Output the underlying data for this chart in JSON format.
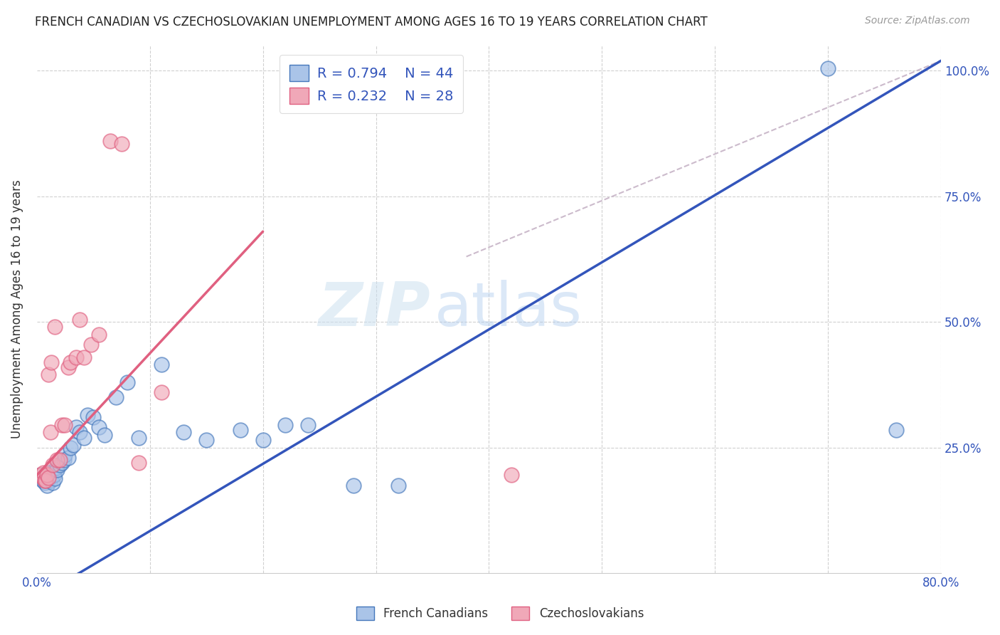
{
  "title": "FRENCH CANADIAN VS CZECHOSLOVAKIAN UNEMPLOYMENT AMONG AGES 16 TO 19 YEARS CORRELATION CHART",
  "source": "Source: ZipAtlas.com",
  "ylabel": "Unemployment Among Ages 16 to 19 years",
  "xmin": 0.0,
  "xmax": 0.8,
  "ymin": 0.0,
  "ymax": 1.05,
  "x_ticks": [
    0.0,
    0.1,
    0.2,
    0.3,
    0.4,
    0.5,
    0.6,
    0.7,
    0.8
  ],
  "y_ticks": [
    0.0,
    0.25,
    0.5,
    0.75,
    1.0
  ],
  "grid_color": "#d0d0d0",
  "background_color": "#ffffff",
  "blue_fill": "#aac4e8",
  "blue_edge": "#4477bb",
  "pink_fill": "#f0a8b8",
  "pink_edge": "#e06080",
  "blue_line_color": "#3355bb",
  "pink_line_color": "#e06080",
  "dash_line_color": "#e0a0b0",
  "legend_blue_R": "R = 0.794",
  "legend_blue_N": "N = 44",
  "legend_pink_R": "R = 0.232",
  "legend_pink_N": "N = 28",
  "watermark_zip": "ZIP",
  "watermark_atlas": "atlas",
  "blue_scatter_x": [
    0.003,
    0.005,
    0.005,
    0.007,
    0.008,
    0.009,
    0.01,
    0.01,
    0.011,
    0.012,
    0.013,
    0.014,
    0.015,
    0.016,
    0.017,
    0.018,
    0.02,
    0.022,
    0.024,
    0.025,
    0.028,
    0.03,
    0.032,
    0.035,
    0.038,
    0.042,
    0.045,
    0.05,
    0.055,
    0.06,
    0.07,
    0.08,
    0.09,
    0.11,
    0.13,
    0.15,
    0.18,
    0.2,
    0.22,
    0.24,
    0.28,
    0.32,
    0.7,
    0.76
  ],
  "blue_scatter_y": [
    0.195,
    0.19,
    0.185,
    0.18,
    0.185,
    0.175,
    0.195,
    0.2,
    0.188,
    0.185,
    0.192,
    0.18,
    0.195,
    0.188,
    0.21,
    0.205,
    0.215,
    0.22,
    0.225,
    0.235,
    0.23,
    0.25,
    0.255,
    0.29,
    0.28,
    0.27,
    0.315,
    0.31,
    0.29,
    0.275,
    0.35,
    0.38,
    0.27,
    0.415,
    0.28,
    0.265,
    0.285,
    0.265,
    0.295,
    0.295,
    0.175,
    0.175,
    1.005,
    0.285
  ],
  "pink_scatter_x": [
    0.003,
    0.005,
    0.006,
    0.007,
    0.008,
    0.009,
    0.01,
    0.01,
    0.012,
    0.013,
    0.014,
    0.016,
    0.018,
    0.02,
    0.022,
    0.025,
    0.028,
    0.03,
    0.035,
    0.038,
    0.042,
    0.048,
    0.055,
    0.065,
    0.075,
    0.09,
    0.11,
    0.42
  ],
  "pink_scatter_y": [
    0.195,
    0.19,
    0.2,
    0.185,
    0.185,
    0.195,
    0.395,
    0.19,
    0.28,
    0.42,
    0.215,
    0.49,
    0.225,
    0.225,
    0.295,
    0.295,
    0.41,
    0.42,
    0.43,
    0.505,
    0.43,
    0.455,
    0.475,
    0.86,
    0.855,
    0.22,
    0.36,
    0.195
  ],
  "blue_line_x": [
    0.0,
    0.8
  ],
  "blue_line_y": [
    -0.05,
    1.02
  ],
  "pink_line_x": [
    0.0,
    0.2
  ],
  "pink_line_y": [
    0.195,
    0.68
  ],
  "dash_line_x": [
    0.38,
    0.8
  ],
  "dash_line_y": [
    0.63,
    1.02
  ]
}
